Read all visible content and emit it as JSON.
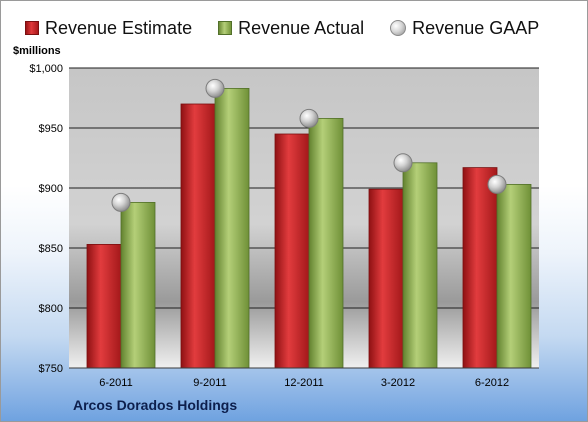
{
  "chart_data": {
    "type": "bar",
    "categories": [
      "6-2011",
      "9-2011",
      "12-2011",
      "3-2012",
      "6-2012"
    ],
    "series": [
      {
        "name": "Revenue Estimate",
        "kind": "bar",
        "color": "#d42426",
        "values": [
          853,
          970,
          945,
          899,
          917
        ]
      },
      {
        "name": "Revenue Actual",
        "kind": "bar",
        "color": "#9bbb59",
        "values": [
          888,
          983,
          958,
          921,
          903
        ]
      },
      {
        "name": "Revenue GAAP",
        "kind": "point",
        "color": "#b8b8b8",
        "values": [
          888,
          983,
          958,
          921,
          903
        ]
      }
    ],
    "ylabel": "$millions",
    "ylim": [
      750,
      1000
    ],
    "yticks": [
      750,
      800,
      850,
      900,
      950,
      1000
    ],
    "ytick_labels": [
      "$750",
      "$800",
      "$850",
      "$900",
      "$950",
      "$1,000"
    ],
    "grid": true,
    "legend_position": "top"
  },
  "company": "Arcos Dorados Holdings"
}
